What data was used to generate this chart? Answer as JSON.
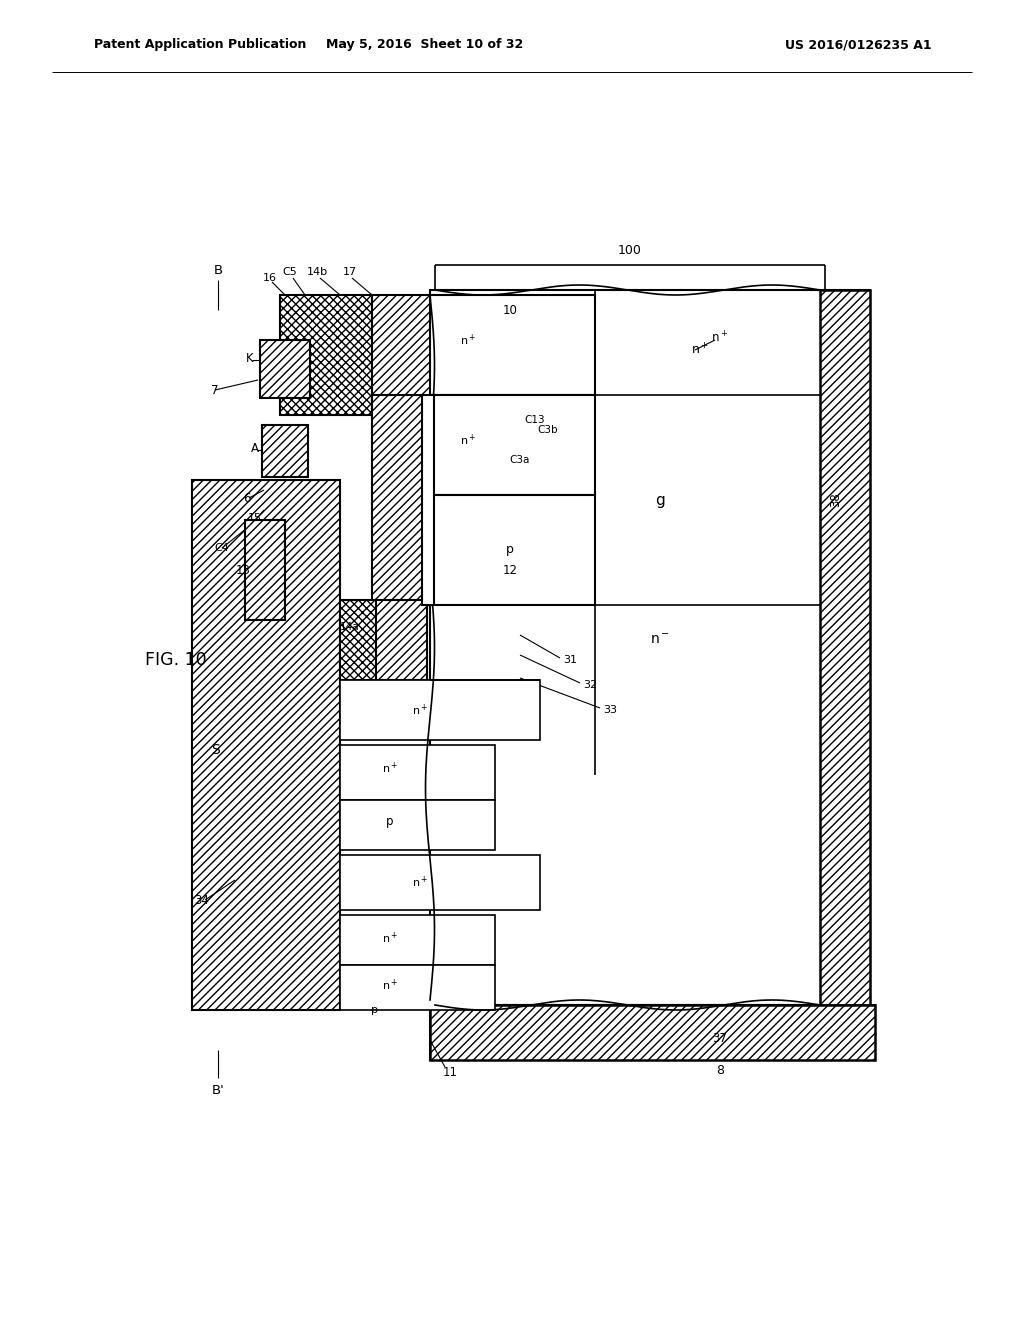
{
  "header_left": "Patent Application Publication",
  "header_mid": "May 5, 2016  Sheet 10 of 32",
  "header_right": "US 2016/0126235 A1",
  "fig_label": "FIG. 10",
  "bg_color": "#ffffff"
}
